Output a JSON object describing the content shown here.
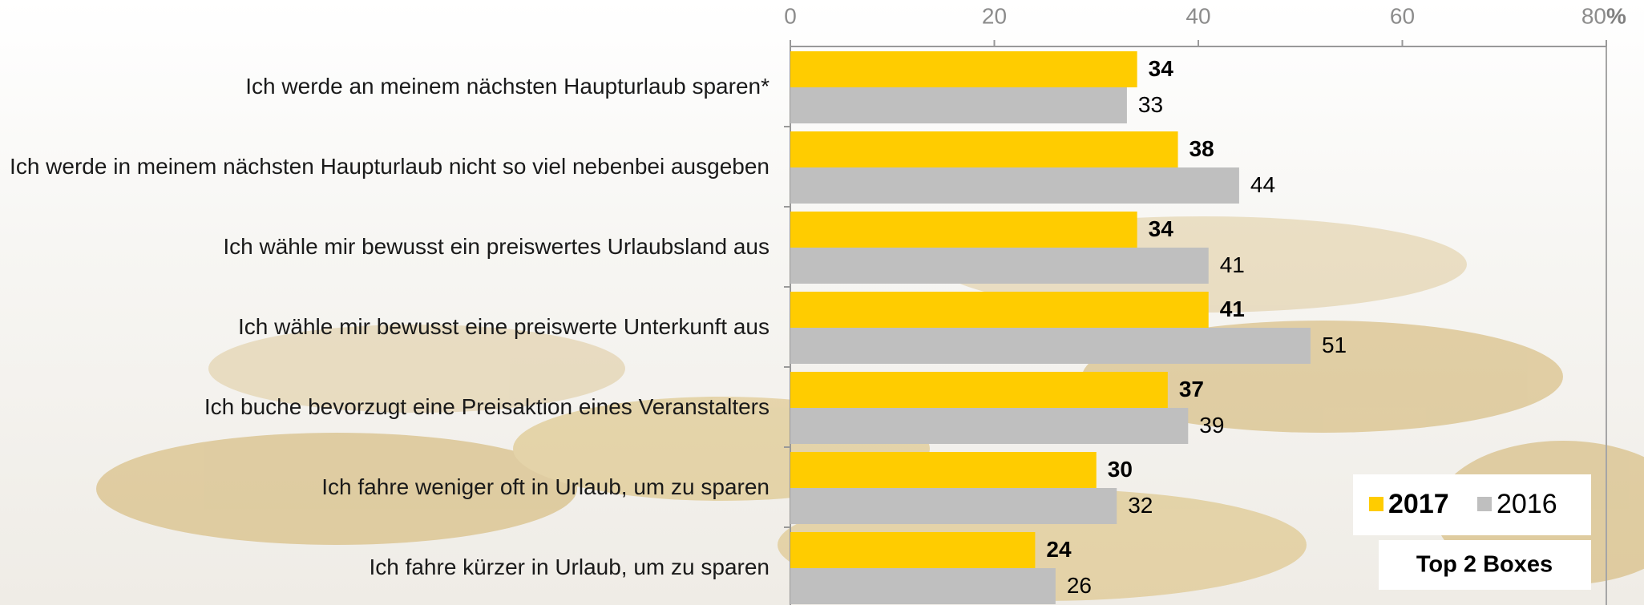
{
  "chart_data": {
    "type": "bar",
    "orientation": "horizontal",
    "categories": [
      "Ich werde an meinem nächsten Haupturlaub sparen*",
      "Ich werde in meinem nächsten Haupturlaub nicht so viel nebenbei ausgeben",
      "Ich wähle mir bewusst ein preiswertes Urlaubsland aus",
      "Ich wähle mir bewusst eine preiswerte Unterkunft aus",
      "Ich buche bevorzugt eine Preisaktion eines Veranstalters",
      "Ich fahre weniger oft in Urlaub, um zu sparen",
      "Ich fahre kürzer in Urlaub, um zu sparen"
    ],
    "series": [
      {
        "name": "2017",
        "color": "#ffcc00",
        "values": [
          34,
          38,
          34,
          41,
          37,
          30,
          24
        ]
      },
      {
        "name": "2016",
        "color": "#bfbfbf",
        "values": [
          33,
          44,
          41,
          51,
          39,
          32,
          26
        ]
      }
    ],
    "xlim": [
      0,
      80
    ],
    "xticks": [
      0,
      20,
      40,
      60,
      80
    ],
    "x_unit": "%",
    "annotation": "Top 2 Boxes",
    "legend": "lower right"
  }
}
